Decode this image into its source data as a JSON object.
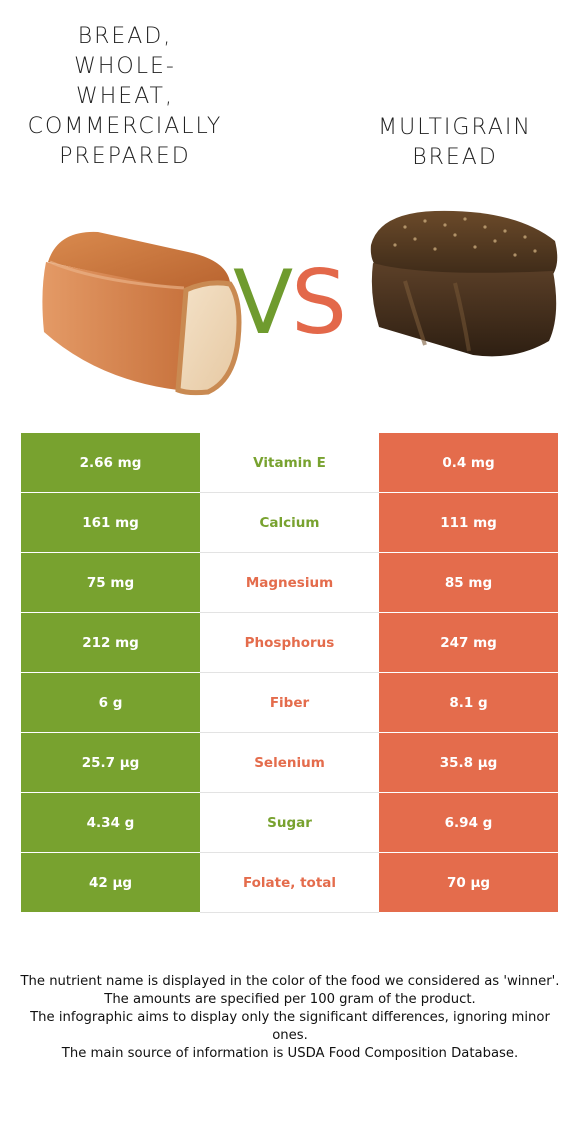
{
  "header": {
    "left_title_lines": [
      "BREAD,",
      "WHOLE-",
      "WHEAT,",
      "COMMERCIALLY",
      "PREPARED"
    ],
    "right_title_lines": [
      "MULTIGRAIN",
      "BREAD"
    ],
    "vs_v": "V",
    "vs_s": "S"
  },
  "colors": {
    "left_food": "#78a22f",
    "right_food": "#e46c4c",
    "vs_v": "#6f9b2e",
    "vs_s": "#e3684a"
  },
  "images": {
    "left": "whole-wheat-bread-loaf",
    "right": "multigrain-bread-loaf"
  },
  "rows": [
    {
      "left": "2.66 mg",
      "nutrient": "Vitamin E",
      "right": "0.4 mg",
      "winner": "left"
    },
    {
      "left": "161 mg",
      "nutrient": "Calcium",
      "right": "111 mg",
      "winner": "left"
    },
    {
      "left": "75 mg",
      "nutrient": "Magnesium",
      "right": "85 mg",
      "winner": "right"
    },
    {
      "left": "212 mg",
      "nutrient": "Phosphorus",
      "right": "247 mg",
      "winner": "right"
    },
    {
      "left": "6 g",
      "nutrient": "Fiber",
      "right": "8.1 g",
      "winner": "right"
    },
    {
      "left": "25.7 µg",
      "nutrient": "Selenium",
      "right": "35.8 µg",
      "winner": "right"
    },
    {
      "left": "4.34 g",
      "nutrient": "Sugar",
      "right": "6.94 g",
      "winner": "left"
    },
    {
      "left": "42 µg",
      "nutrient": "Folate, total",
      "right": "70 µg",
      "winner": "right"
    }
  ],
  "footnote": {
    "line1": "The nutrient name is displayed in the color of the food we considered as 'winner'.",
    "line2": "The amounts are specified per 100 gram of the product.",
    "line3": "The infographic aims to display only the significant differences, ignoring minor ones.",
    "line4": "The main source of information is USDA Food Composition Database."
  }
}
